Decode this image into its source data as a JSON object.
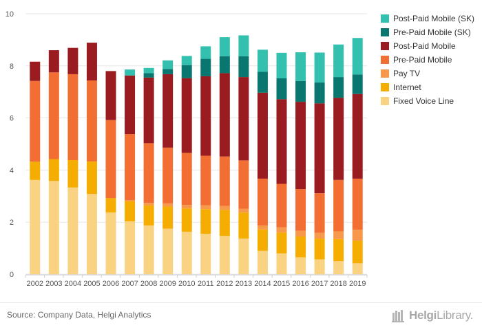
{
  "chart_data": {
    "type": "bar",
    "stacked": true,
    "categories": [
      "2002",
      "2003",
      "2004",
      "2005",
      "2006",
      "2007",
      "2008",
      "2009",
      "2010",
      "2011",
      "2012",
      "2013",
      "2014",
      "2015",
      "2016",
      "2017",
      "2018",
      "2019"
    ],
    "ylim": [
      0,
      10
    ],
    "yticks": [
      "0",
      "2",
      "4",
      "6",
      "8",
      "10"
    ],
    "grid": true,
    "legend_position": "right",
    "series": [
      {
        "name": "Fixed Voice Line",
        "color": "#fad382",
        "values": [
          3.62,
          3.58,
          3.33,
          3.08,
          2.37,
          2.03,
          1.87,
          1.75,
          1.63,
          1.55,
          1.47,
          1.37,
          0.9,
          0.8,
          0.65,
          0.57,
          0.5,
          0.42
        ]
      },
      {
        "name": "Internet",
        "color": "#f4ad00",
        "values": [
          0.7,
          0.84,
          1.05,
          1.25,
          0.55,
          0.77,
          0.77,
          0.85,
          0.9,
          0.95,
          1.0,
          1.0,
          0.82,
          0.8,
          0.8,
          0.8,
          0.85,
          0.87
        ]
      },
      {
        "name": "Pay TV",
        "color": "#f7984b",
        "values": [
          0,
          0,
          0,
          0,
          0,
          0.05,
          0.1,
          0.12,
          0.13,
          0.15,
          0.15,
          0.15,
          0.15,
          0.2,
          0.22,
          0.22,
          0.3,
          0.42
        ]
      },
      {
        "name": "Pre-Paid Mobile",
        "color": "#f26e32",
        "values": [
          3.1,
          3.33,
          3.3,
          3.11,
          3.0,
          2.53,
          2.29,
          2.14,
          2.0,
          1.9,
          1.9,
          1.85,
          1.8,
          1.67,
          1.6,
          1.52,
          1.97,
          1.96
        ]
      },
      {
        "name": "Post-Paid Mobile",
        "color": "#9a1c20",
        "values": [
          0.74,
          0.85,
          1.01,
          1.45,
          1.88,
          2.25,
          2.52,
          2.82,
          2.87,
          3.05,
          3.2,
          3.2,
          3.3,
          3.25,
          3.35,
          3.45,
          3.15,
          3.25
        ]
      },
      {
        "name": "Pre-Paid Mobile (SK)",
        "color": "#0a7670",
        "values": [
          0,
          0,
          0,
          0,
          0,
          0,
          0.17,
          0.2,
          0.5,
          0.67,
          0.65,
          0.8,
          0.8,
          0.8,
          0.8,
          0.8,
          0.8,
          0.75
        ]
      },
      {
        "name": "Post-Paid Mobile (SK)",
        "color": "#33c0ae",
        "values": [
          0,
          0,
          0,
          0,
          0,
          0.23,
          0.2,
          0.33,
          0.35,
          0.48,
          0.73,
          0.8,
          0.85,
          0.98,
          1.1,
          1.15,
          1.25,
          1.4
        ]
      }
    ]
  },
  "footer": {
    "source": "Source: Company Data, Helgi Analytics",
    "logo_text_main": "Helgi",
    "logo_text_tail": "Library.",
    "logo_icon": "helgi-library-logo-icon"
  }
}
